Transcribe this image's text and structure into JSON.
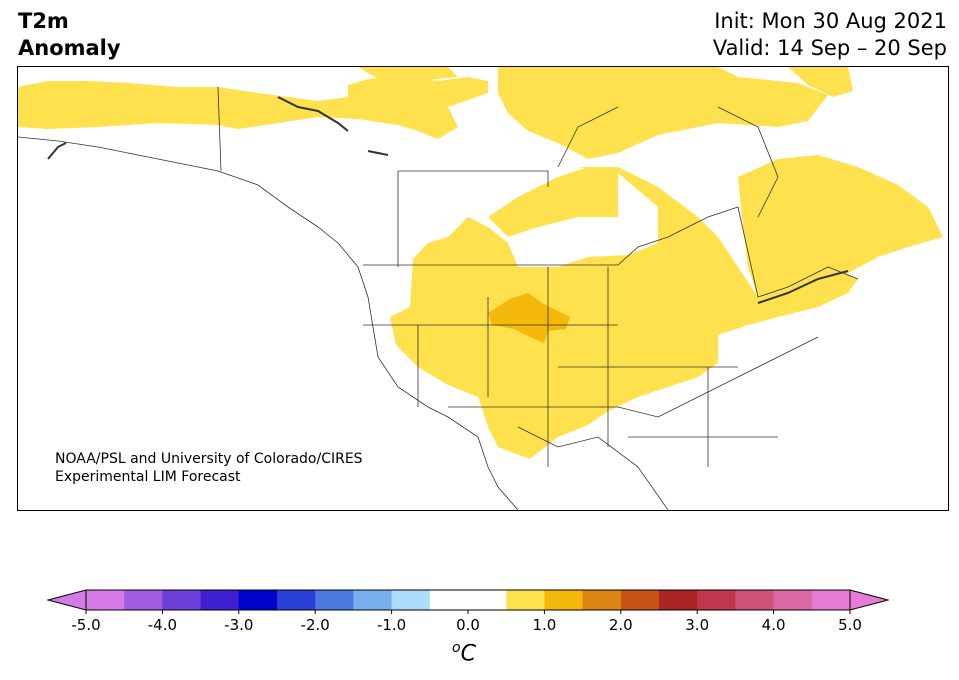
{
  "title": {
    "left_line1": "T2m",
    "left_line2": "Anomaly",
    "init": "Init: Mon 30 Aug 2021",
    "valid": "Valid: 14 Sep – 20 Sep"
  },
  "map": {
    "region": "North America",
    "credit_line1": "NOAA/PSL and University of Colorado/CIRES",
    "credit_line2": "Experimental LIM Forecast"
  },
  "colorbar": {
    "unit_symbol": "o",
    "unit_letter": "C",
    "ticks": [
      "-5.0",
      "-4.0",
      "-3.0",
      "-2.0",
      "-1.0",
      "0.0",
      "1.0",
      "2.0",
      "3.0",
      "4.0",
      "5.0"
    ],
    "colors": [
      "#d67be6",
      "#a05cdf",
      "#6b3fd8",
      "#3d1fcf",
      "#0202cd",
      "#2a3fd6",
      "#4d78e0",
      "#77b0ee",
      "#abdcf9",
      "#ffffff",
      "#ffffff",
      "#fee14d",
      "#f4b80b",
      "#dc8515",
      "#c65218",
      "#a92423",
      "#c1354d",
      "#cf5175",
      "#dc67a5",
      "#e77cd7"
    ],
    "under_color": "#d67be6",
    "over_color": "#e77cd7"
  },
  "colors": {
    "anomaly_0p5_1": "#fee14d",
    "anomaly_1_1p5": "#f4b80b",
    "borders": "#333333"
  }
}
